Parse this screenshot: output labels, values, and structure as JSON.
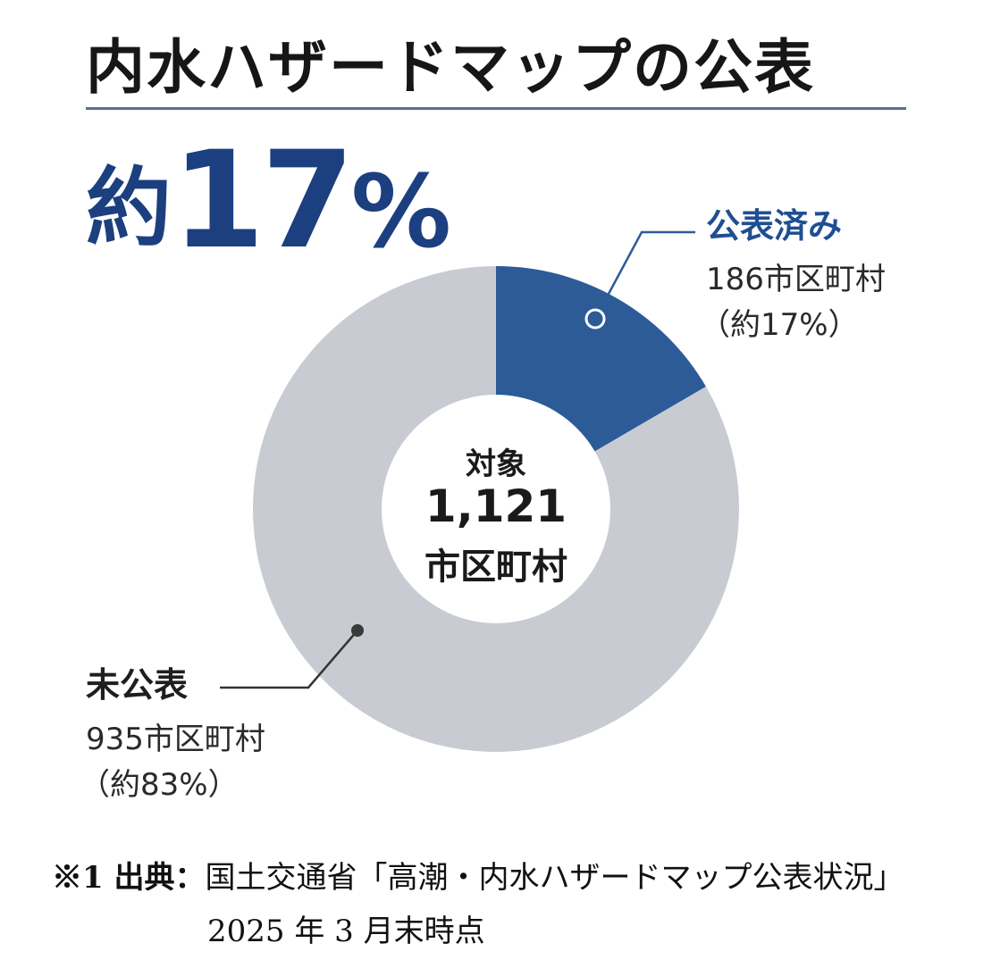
{
  "title": "内水ハザードマップの公表",
  "headline": {
    "prefix": "約",
    "number": "17",
    "suffix": "%"
  },
  "chart_data": {
    "type": "pie",
    "variant": "donut",
    "title": "内水ハザードマップの公表",
    "total": 1121,
    "center_label": {
      "line1": "対象",
      "line2": "1,121",
      "line3": "市区町村"
    },
    "slices": [
      {
        "name": "公表済み",
        "value": 186,
        "detail": "186市区町村",
        "share": "（約17%）",
        "color": "#2d5b98"
      },
      {
        "name": "未公表",
        "value": 935,
        "detail": "935市区町村",
        "share": "（約83%）",
        "color": "#c9cbd3"
      }
    ]
  },
  "source": {
    "prefix": "※1 出典：",
    "text": "国土交通省「高潮・内水ハザードマップ公表状況」",
    "date": "2025 年 3 月末時点"
  }
}
